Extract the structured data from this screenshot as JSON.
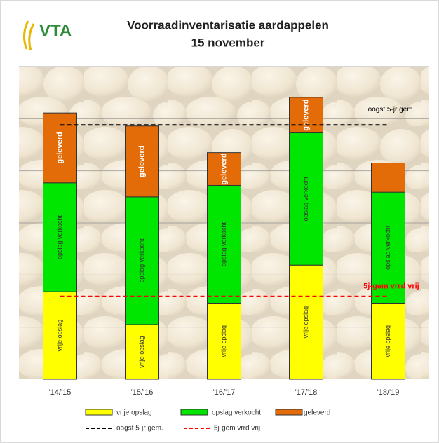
{
  "chart_data": {
    "type": "stacked-bar",
    "logo": "VTA",
    "title": "Voorraadinventarisatie aardappelen",
    "subtitle": "15 november",
    "categories": [
      "'14/'15",
      "'15/'16",
      "'16/'17",
      "'17/'18",
      "'18/'19"
    ],
    "series": [
      {
        "name": "vrije opslag",
        "color": "#ffff00",
        "label_color": "#333333",
        "values": [
          1.68,
          1.05,
          1.46,
          2.19,
          1.46
        ]
      },
      {
        "name": "opslag verkocht",
        "color": "#00e600",
        "label_color": "#333333",
        "values": [
          2.09,
          2.45,
          2.26,
          2.54,
          2.13
        ]
      },
      {
        "name": "geleverd",
        "color": "#e36c09",
        "label_color": "#ffffff",
        "values": [
          1.34,
          1.36,
          0.63,
          0.68,
          0.56
        ]
      }
    ],
    "lines": [
      {
        "name": "oogst 5-jr gem.",
        "color": "#000000",
        "value": 4.88
      },
      {
        "name": "5j-gem vrrd vrij",
        "color": "#ff0000",
        "value": 1.59
      }
    ],
    "ylim": [
      0,
      6
    ],
    "grid": true
  }
}
